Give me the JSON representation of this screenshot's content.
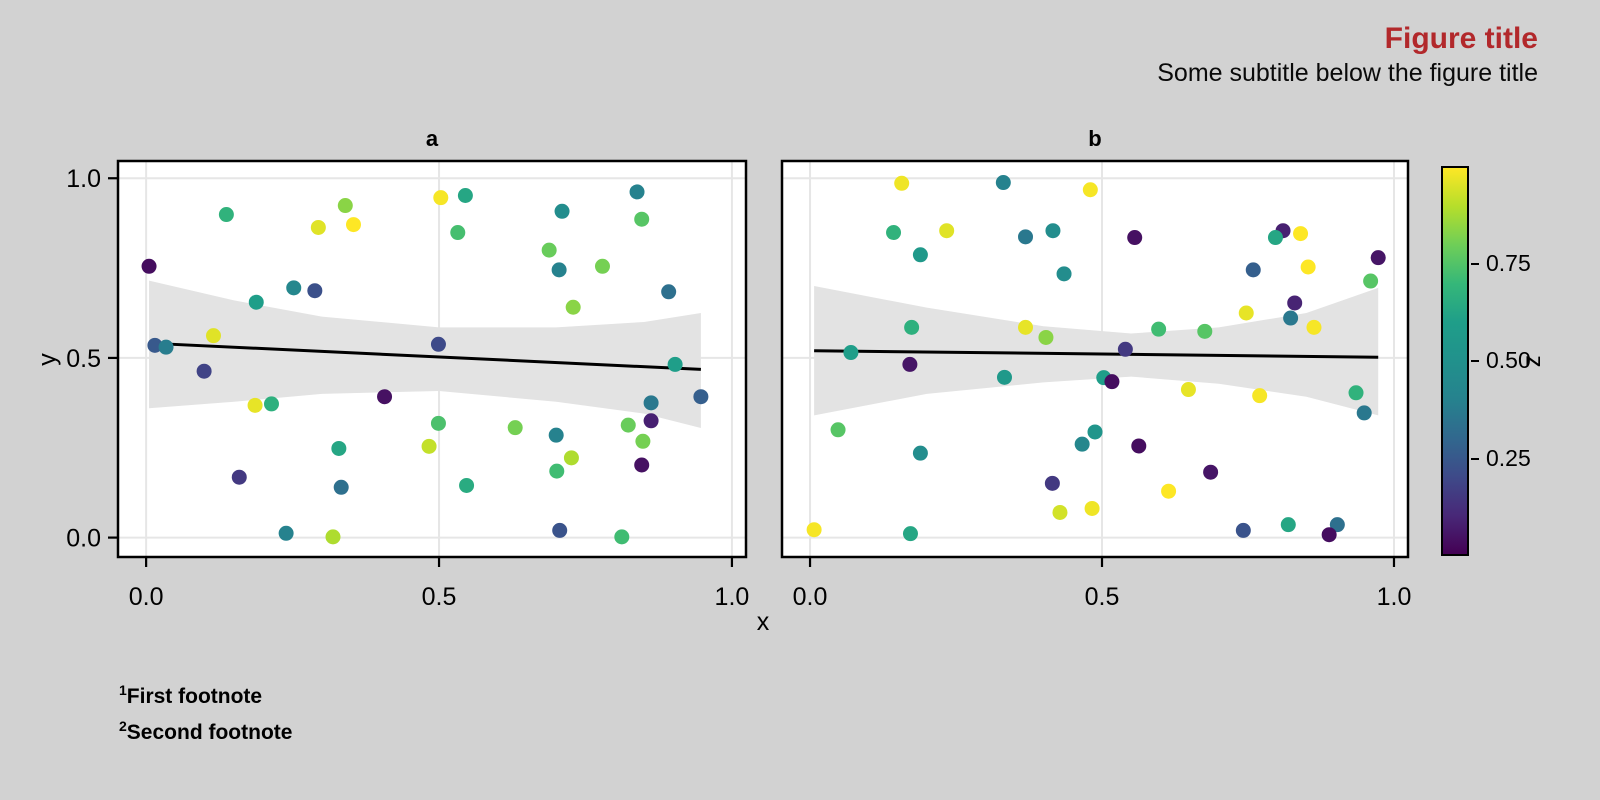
{
  "figure": {
    "title": "Figure title",
    "subtitle": "Some subtitle below the figure title",
    "title_color": "#B2282B",
    "background_color": "#d2d2d2"
  },
  "footnotes": [
    {
      "marker": "1",
      "text": "First footnote"
    },
    {
      "marker": "2",
      "text": "Second footnote"
    }
  ],
  "axes": {
    "x_label": "x",
    "y_label": "y",
    "x_tick_values": [
      0.0,
      0.5,
      1.0
    ],
    "x_tick_labels": [
      "0.0",
      "0.5",
      "1.0"
    ],
    "y_tick_values": [
      0.0,
      0.5,
      1.0
    ],
    "y_tick_labels": [
      "0.0",
      "0.5",
      "1.0"
    ]
  },
  "colorbar": {
    "title": "z",
    "palette": "viridis",
    "range": [
      0,
      1
    ],
    "tick_values": [
      0.25,
      0.5,
      0.75
    ],
    "tick_labels": [
      "0.25",
      "0.50",
      "0.75"
    ]
  },
  "style": {
    "panel_bg": "#ffffff",
    "grid_color": "#e6e6e6",
    "band_color": "#e3e3e3",
    "line_color": "#000000",
    "border_color": "#000000",
    "point_radius": 7.5
  },
  "chart_data": [
    {
      "type": "scatter",
      "panel": "a",
      "xlim": [
        0,
        1
      ],
      "ylim": [
        0,
        1
      ],
      "grid": true,
      "points_format": [
        "x",
        "y",
        "z"
      ],
      "points": [
        [
          0.137,
          0.899,
          0.68
        ],
        [
          0.34,
          0.924,
          0.84
        ],
        [
          0.294,
          0.863,
          0.96
        ],
        [
          0.354,
          0.871,
          1.0
        ],
        [
          0.503,
          0.946,
          0.99
        ],
        [
          0.545,
          0.952,
          0.63
        ],
        [
          0.532,
          0.849,
          0.73
        ],
        [
          0.71,
          0.908,
          0.47
        ],
        [
          0.838,
          0.962,
          0.4
        ],
        [
          0.846,
          0.886,
          0.76
        ],
        [
          0.688,
          0.8,
          0.79
        ],
        [
          0.705,
          0.745,
          0.4
        ],
        [
          0.779,
          0.755,
          0.81
        ],
        [
          0.005,
          0.755,
          0.03
        ],
        [
          0.252,
          0.695,
          0.43
        ],
        [
          0.288,
          0.687,
          0.22
        ],
        [
          0.188,
          0.655,
          0.6
        ],
        [
          0.892,
          0.684,
          0.33
        ],
        [
          0.729,
          0.641,
          0.84
        ],
        [
          0.115,
          0.562,
          0.96
        ],
        [
          0.015,
          0.535,
          0.25
        ],
        [
          0.034,
          0.53,
          0.38
        ],
        [
          0.499,
          0.538,
          0.2
        ],
        [
          0.099,
          0.463,
          0.18
        ],
        [
          0.903,
          0.482,
          0.6
        ],
        [
          0.407,
          0.392,
          0.04
        ],
        [
          0.947,
          0.392,
          0.27
        ],
        [
          0.862,
          0.375,
          0.36
        ],
        [
          0.186,
          0.368,
          0.97
        ],
        [
          0.214,
          0.372,
          0.67
        ],
        [
          0.862,
          0.325,
          0.08
        ],
        [
          0.499,
          0.318,
          0.74
        ],
        [
          0.63,
          0.306,
          0.81
        ],
        [
          0.823,
          0.313,
          0.79
        ],
        [
          0.7,
          0.285,
          0.4
        ],
        [
          0.848,
          0.268,
          0.81
        ],
        [
          0.329,
          0.248,
          0.63
        ],
        [
          0.483,
          0.254,
          0.92
        ],
        [
          0.846,
          0.202,
          0.04
        ],
        [
          0.726,
          0.222,
          0.89
        ],
        [
          0.701,
          0.185,
          0.72
        ],
        [
          0.159,
          0.168,
          0.15
        ],
        [
          0.333,
          0.14,
          0.33
        ],
        [
          0.547,
          0.145,
          0.65
        ],
        [
          0.706,
          0.02,
          0.23
        ],
        [
          0.239,
          0.012,
          0.4
        ],
        [
          0.319,
          0.002,
          0.89
        ],
        [
          0.812,
          0.002,
          0.72
        ]
      ],
      "trend": {
        "x": [
          0.005,
          0.947
        ],
        "y": [
          0.541,
          0.468
        ]
      },
      "ci_band": {
        "top": [
          [
            0.005,
            0.715
          ],
          [
            0.15,
            0.66
          ],
          [
            0.3,
            0.615
          ],
          [
            0.5,
            0.585
          ],
          [
            0.7,
            0.585
          ],
          [
            0.85,
            0.6
          ],
          [
            0.947,
            0.625
          ]
        ],
        "bottom": [
          [
            0.005,
            0.36
          ],
          [
            0.15,
            0.378
          ],
          [
            0.3,
            0.4
          ],
          [
            0.5,
            0.408
          ],
          [
            0.7,
            0.378
          ],
          [
            0.85,
            0.345
          ],
          [
            0.947,
            0.305
          ]
        ]
      }
    },
    {
      "type": "scatter",
      "panel": "b",
      "xlim": [
        0,
        1
      ],
      "ylim": [
        0,
        1
      ],
      "grid": true,
      "points_format": [
        "x",
        "y",
        "z"
      ],
      "points": [
        [
          0.157,
          0.986,
          0.98
        ],
        [
          0.331,
          0.988,
          0.4
        ],
        [
          0.48,
          0.968,
          0.99
        ],
        [
          0.143,
          0.849,
          0.68
        ],
        [
          0.234,
          0.854,
          0.96
        ],
        [
          0.189,
          0.787,
          0.56
        ],
        [
          0.369,
          0.837,
          0.36
        ],
        [
          0.416,
          0.854,
          0.47
        ],
        [
          0.435,
          0.734,
          0.47
        ],
        [
          0.174,
          0.585,
          0.67
        ],
        [
          0.369,
          0.585,
          0.97
        ],
        [
          0.404,
          0.557,
          0.84
        ],
        [
          0.07,
          0.515,
          0.6
        ],
        [
          0.556,
          0.835,
          0.04
        ],
        [
          0.81,
          0.854,
          0.08
        ],
        [
          0.797,
          0.835,
          0.63
        ],
        [
          0.84,
          0.846,
          1.0
        ],
        [
          0.759,
          0.745,
          0.27
        ],
        [
          0.853,
          0.753,
          1.0
        ],
        [
          0.973,
          0.779,
          0.05
        ],
        [
          0.96,
          0.714,
          0.76
        ],
        [
          0.83,
          0.653,
          0.09
        ],
        [
          0.823,
          0.611,
          0.36
        ],
        [
          0.747,
          0.625,
          0.97
        ],
        [
          0.863,
          0.585,
          0.99
        ],
        [
          0.597,
          0.58,
          0.72
        ],
        [
          0.676,
          0.574,
          0.76
        ],
        [
          0.54,
          0.524,
          0.15
        ],
        [
          0.171,
          0.482,
          0.05
        ],
        [
          0.333,
          0.446,
          0.56
        ],
        [
          0.048,
          0.3,
          0.76
        ],
        [
          0.189,
          0.235,
          0.47
        ],
        [
          0.466,
          0.26,
          0.43
        ],
        [
          0.488,
          0.294,
          0.53
        ],
        [
          0.415,
          0.151,
          0.15
        ],
        [
          0.428,
          0.07,
          0.94
        ],
        [
          0.483,
          0.081,
          0.98
        ],
        [
          0.007,
          0.022,
          0.99
        ],
        [
          0.172,
          0.011,
          0.63
        ],
        [
          0.503,
          0.445,
          0.6
        ],
        [
          0.517,
          0.434,
          0.03
        ],
        [
          0.648,
          0.412,
          0.97
        ],
        [
          0.77,
          0.395,
          0.99
        ],
        [
          0.935,
          0.403,
          0.68
        ],
        [
          0.949,
          0.347,
          0.36
        ],
        [
          0.563,
          0.255,
          0.03
        ],
        [
          0.686,
          0.182,
          0.05
        ],
        [
          0.614,
          0.129,
          1.0
        ],
        [
          0.742,
          0.02,
          0.23
        ],
        [
          0.819,
          0.036,
          0.63
        ],
        [
          0.903,
          0.036,
          0.33
        ],
        [
          0.889,
          0.008,
          0.03
        ]
      ],
      "trend": {
        "x": [
          0.007,
          0.973
        ],
        "y": [
          0.52,
          0.502
        ]
      },
      "ci_band": {
        "top": [
          [
            0.007,
            0.7
          ],
          [
            0.2,
            0.64
          ],
          [
            0.4,
            0.588
          ],
          [
            0.55,
            0.568
          ],
          [
            0.7,
            0.585
          ],
          [
            0.85,
            0.625
          ],
          [
            0.973,
            0.695
          ]
        ],
        "bottom": [
          [
            0.007,
            0.34
          ],
          [
            0.2,
            0.4
          ],
          [
            0.4,
            0.432
          ],
          [
            0.55,
            0.448
          ],
          [
            0.7,
            0.428
          ],
          [
            0.85,
            0.392
          ],
          [
            0.973,
            0.34
          ]
        ]
      }
    }
  ]
}
